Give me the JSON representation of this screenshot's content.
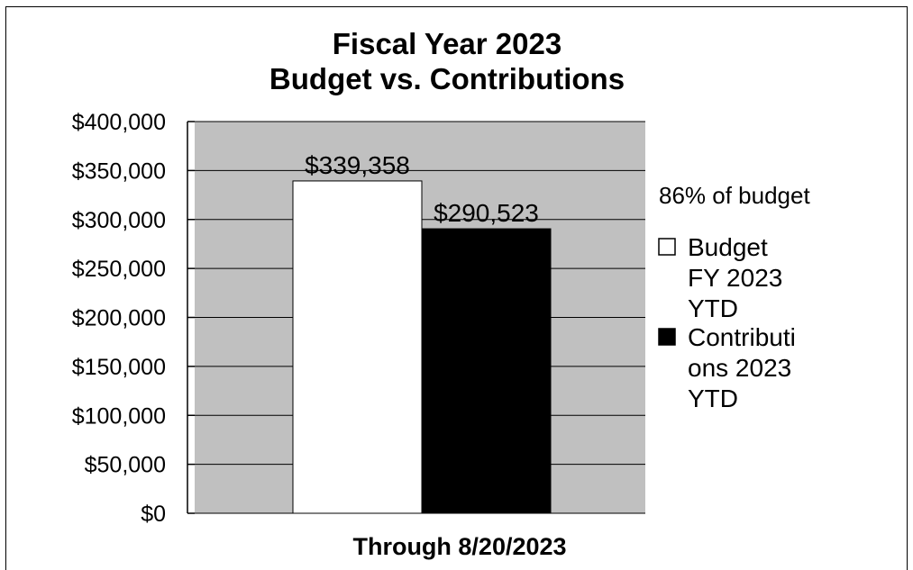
{
  "chart_data": {
    "type": "bar",
    "title_lines": [
      "Fiscal Year 2023",
      "Budget vs. Contributions"
    ],
    "xlabel": "Through 8/20/2023",
    "ylabel": "",
    "ylim": [
      0,
      400000
    ],
    "y_ticks": [
      {
        "value": 400000,
        "label": "$400,000"
      },
      {
        "value": 350000,
        "label": "$350,000"
      },
      {
        "value": 300000,
        "label": "$300,000"
      },
      {
        "value": 250000,
        "label": "$250,000"
      },
      {
        "value": 200000,
        "label": "$200,000"
      },
      {
        "value": 150000,
        "label": "$150,000"
      },
      {
        "value": 100000,
        "label": "$100,000"
      },
      {
        "value": 50000,
        "label": "$50,000"
      },
      {
        "value": 0,
        "label": "$0"
      }
    ],
    "grid": true,
    "plot_background": "#c0c0c0",
    "legend_position": "right",
    "annotation": "86% of budget",
    "series": [
      {
        "name_lines": [
          "Budget",
          "FY 2023",
          "YTD"
        ],
        "value": 339358,
        "data_label": "$339,358",
        "color": "#ffffff"
      },
      {
        "name_lines": [
          "Contributi",
          "ons 2023",
          "YTD"
        ],
        "value": 290523,
        "data_label": "$290,523",
        "color": "#000000"
      }
    ]
  }
}
